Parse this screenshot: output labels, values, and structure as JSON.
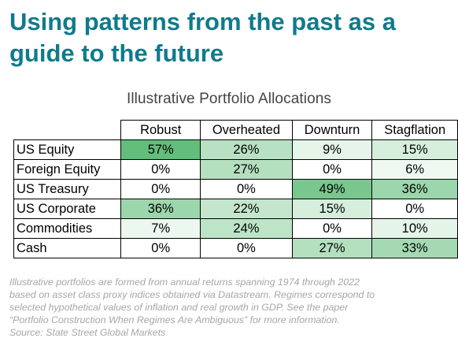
{
  "title": {
    "line1": "Using patterns from the past as a",
    "line2": "guide to the future"
  },
  "table": {
    "caption": "Illustrative Portfolio Allocations",
    "columns": [
      "Robust",
      "Overheated",
      "Downturn",
      "Stagflation"
    ],
    "rows": [
      {
        "label": "US Equity",
        "values": [
          "57%",
          "26%",
          "9%",
          "15%"
        ],
        "numeric": [
          57,
          26,
          9,
          15
        ]
      },
      {
        "label": "Foreign Equity",
        "values": [
          "0%",
          "27%",
          "0%",
          "6%"
        ],
        "numeric": [
          0,
          27,
          0,
          6
        ]
      },
      {
        "label": "US Treasury",
        "values": [
          "0%",
          "0%",
          "49%",
          "36%"
        ],
        "numeric": [
          0,
          0,
          49,
          36
        ]
      },
      {
        "label": "US Corporate",
        "values": [
          "36%",
          "22%",
          "15%",
          "0%"
        ],
        "numeric": [
          36,
          22,
          15,
          0
        ]
      },
      {
        "label": "Commodities",
        "values": [
          "7%",
          "24%",
          "0%",
          "10%"
        ],
        "numeric": [
          7,
          24,
          0,
          10
        ]
      },
      {
        "label": "Cash",
        "values": [
          "0%",
          "0%",
          "27%",
          "33%"
        ],
        "numeric": [
          0,
          0,
          27,
          33
        ]
      }
    ],
    "heat_colors": {
      "low": "#ffffff",
      "high": "#63be7b"
    }
  },
  "footnote": {
    "lines": [
      "Illustrative portfolios are formed from annual returns spanning 1974 through 2022",
      "based on asset class proxy indices obtained via Datastream. Regimes correspond to",
      "selected hypothetical values of inflation and real growth in GDP. See the paper",
      "“Portfolio Construction When Regimes Are Ambiguous” for more information.",
      "Source: State Street Global Markets"
    ]
  },
  "colors": {
    "title": "#0f7b8c",
    "subtitle": "#444444",
    "footnote": "#a6a6a6"
  }
}
